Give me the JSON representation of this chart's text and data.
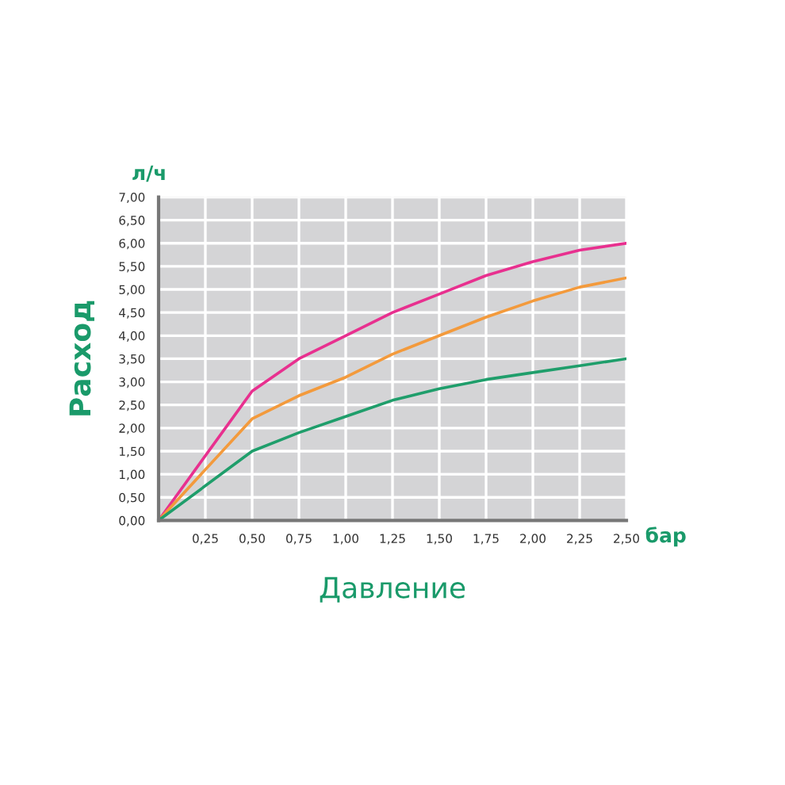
{
  "chart_data": {
    "type": "line",
    "xlabel": "Давление",
    "ylabel": "Расход",
    "annotations": [
      "л/ч",
      "бар"
    ],
    "x": [
      0,
      0.5,
      0.75,
      1.0,
      1.25,
      1.5,
      1.75,
      2.0,
      2.25,
      2.5
    ],
    "series": [
      {
        "color": "#e8308f",
        "values": [
          0,
          2.8,
          3.5,
          4.0,
          4.5,
          4.9,
          5.3,
          5.6,
          5.85,
          6.0
        ]
      },
      {
        "color": "#f39a3c",
        "values": [
          0,
          2.2,
          2.7,
          3.1,
          3.6,
          4.0,
          4.4,
          4.75,
          5.05,
          5.25
        ]
      },
      {
        "color": "#1f9e6b",
        "values": [
          0,
          1.5,
          1.9,
          2.25,
          2.6,
          2.85,
          3.05,
          3.2,
          3.35,
          3.5
        ]
      }
    ],
    "xlim": [
      0,
      2.5
    ],
    "xticks": [
      {
        "value": 0.25,
        "label": "0,25"
      },
      {
        "value": 0.5,
        "label": "0,50"
      },
      {
        "value": 0.75,
        "label": "0,75"
      },
      {
        "value": 1.0,
        "label": "1,00"
      },
      {
        "value": 1.25,
        "label": "1,25"
      },
      {
        "value": 1.5,
        "label": "1,50"
      },
      {
        "value": 1.75,
        "label": "1,75"
      },
      {
        "value": 2.0,
        "label": "2,00"
      },
      {
        "value": 2.25,
        "label": "2,25"
      },
      {
        "value": 2.5,
        "label": "2,50"
      }
    ],
    "ylim": [
      0,
      7
    ],
    "yticks": [
      {
        "value": 0,
        "label": "0,00"
      },
      {
        "value": 0.5,
        "label": "0,50"
      },
      {
        "value": 1,
        "label": "1,00"
      },
      {
        "value": 1.5,
        "label": "1,50"
      },
      {
        "value": 2,
        "label": "2,00"
      },
      {
        "value": 2.5,
        "label": "2,50"
      },
      {
        "value": 3,
        "label": "3,00"
      },
      {
        "value": 3.5,
        "label": "3,50"
      },
      {
        "value": 4,
        "label": "4,00"
      },
      {
        "value": 4.5,
        "label": "4,50"
      },
      {
        "value": 5,
        "label": "5,00"
      },
      {
        "value": 5.5,
        "label": "5,50"
      },
      {
        "value": 6,
        "label": "6,00"
      },
      {
        "value": 6.5,
        "label": "6,50"
      },
      {
        "value": 7,
        "label": "7,00"
      }
    ],
    "grid": true,
    "legend": false,
    "marker": "none",
    "line_style": "solid"
  }
}
